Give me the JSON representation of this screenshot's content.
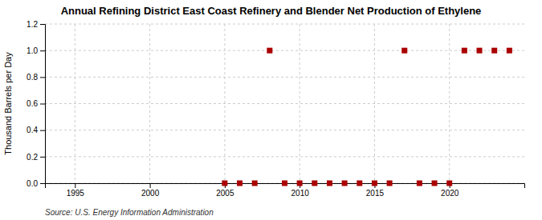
{
  "chart_data": {
    "type": "scatter",
    "title": "Annual Refining District East Coast Refinery and Blender Net Production of Ethylene",
    "ylabel": "Thousand Barrels per Day",
    "annotations": [
      "Source: U.S. Energy Information Administration"
    ],
    "x": [
      2005,
      2006,
      2007,
      2008,
      2009,
      2010,
      2011,
      2012,
      2013,
      2014,
      2015,
      2016,
      2017,
      2018,
      2019,
      2020,
      2021,
      2022,
      2023,
      2024
    ],
    "values": [
      0.0,
      0.0,
      0.0,
      1.0,
      0.0,
      0.0,
      0.0,
      0.0,
      0.0,
      0.0,
      0.0,
      0.0,
      1.0,
      0.0,
      0.0,
      0.0,
      1.0,
      1.0,
      1.0,
      1.0
    ],
    "color": "#aa0000",
    "marker": "square",
    "xlim": [
      1993,
      2025
    ],
    "ylim": [
      0.0,
      1.2
    ],
    "xticks": [
      1995,
      2000,
      2005,
      2010,
      2015,
      2020
    ],
    "yticks": [
      {
        "value": 0.0,
        "label": "0.0"
      },
      0.2,
      0.4,
      0.6,
      0.8,
      {
        "value": 1.0,
        "label": "1.0"
      },
      1.2
    ],
    "grid": true
  }
}
